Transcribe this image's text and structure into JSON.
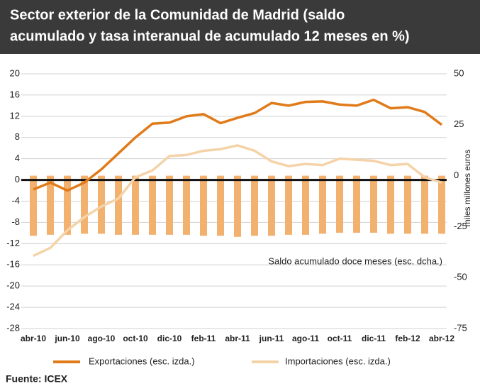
{
  "chart_data": {
    "type": "combo",
    "title": [
      "Sector exterior de la Comunidad de Madrid (saldo",
      "acumulado y tasa interanual de acumulado 12 meses en %)"
    ],
    "categories": [
      "abr-10",
      null,
      "jun-10",
      null,
      "ago-10",
      null,
      "oct-10",
      null,
      "dic-10",
      null,
      "feb-11",
      null,
      "abr-11",
      null,
      "jun-11",
      null,
      "ago-11",
      null,
      "oct-11",
      null,
      "dic-11",
      null,
      "feb-12",
      null,
      "abr-12"
    ],
    "series": [
      {
        "name": "Saldo acumulado doce meses (esc. dcha.)",
        "type": "bar",
        "axis": "y2",
        "color": "#f2b16e",
        "values": [
          -29.5,
          -29,
          -29,
          -28.5,
          -28.5,
          -29,
          -29,
          -29,
          -29,
          -29,
          -29.5,
          -29.5,
          -30,
          -29.5,
          -29.5,
          -29,
          -29,
          -28.5,
          -28,
          -28,
          -28,
          -28.5,
          -28.5,
          -28.5,
          -28.5
        ]
      },
      {
        "name": "Exportaciones (esc. izda.)",
        "type": "line",
        "axis": "y",
        "color": "#e07b1a",
        "values": [
          -1.8,
          -0.5,
          -2,
          -0.5,
          2,
          5,
          8,
          10.6,
          10.8,
          12,
          12.4,
          10.7,
          11.7,
          12.6,
          14.5,
          14,
          14.7,
          14.8,
          14.2,
          14,
          15.1,
          13.5,
          13.7,
          12.8,
          10.4
        ]
      },
      {
        "name": "Importaciones (esc. izda.)",
        "type": "line",
        "axis": "y",
        "color": "#f5d3a8",
        "values": [
          -14.3,
          -12.8,
          -9.5,
          -7,
          -5,
          -3.5,
          0.5,
          1.8,
          4.5,
          4.7,
          5.5,
          5.8,
          6.5,
          5.5,
          3.5,
          2.6,
          3,
          2.8,
          4,
          3.8,
          3.6,
          2.8,
          3,
          0.5,
          -0.5
        ]
      }
    ],
    "ylim": [
      -28,
      20
    ],
    "yticks": [
      20,
      16,
      12,
      8,
      4,
      0,
      -4,
      -8,
      -12,
      -16,
      -20,
      -24,
      -28
    ],
    "y2lim": [
      -75,
      50
    ],
    "y2ticks": [
      50,
      25,
      0,
      -25,
      -50,
      -75
    ],
    "y2label": "miles millones euros",
    "grid": true,
    "source": "Fuente: ICEX"
  }
}
